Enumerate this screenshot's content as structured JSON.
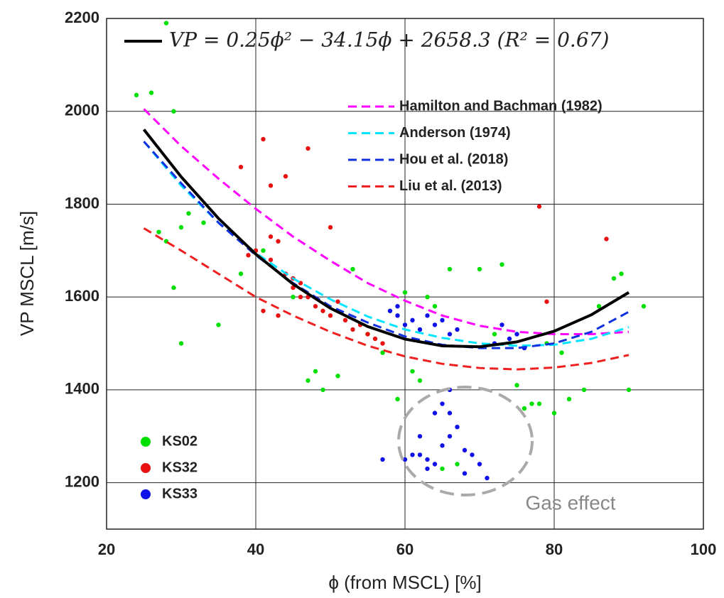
{
  "chart_data": {
    "type": "scatter",
    "xlabel": "ϕ (from MSCL) [%]",
    "ylabel": "VP MSCL [m/s]",
    "annotation": "Gas effect",
    "xlim": [
      20,
      100
    ],
    "ylim": [
      1100,
      2200
    ],
    "xticks": [
      20,
      40,
      60,
      80,
      100
    ],
    "yticks": [
      1200,
      1400,
      1600,
      1800,
      2000,
      2200
    ],
    "grid": true,
    "series": [
      {
        "name": "KS02",
        "color": "#00e000",
        "mode": "markers",
        "x": [
          24,
          26,
          28,
          29,
          27,
          28,
          30,
          31,
          33,
          35,
          30,
          29,
          38,
          41,
          45,
          48,
          49,
          51,
          53,
          47,
          55,
          57,
          60,
          61,
          62,
          63,
          64,
          66,
          70,
          72,
          73,
          75,
          76,
          78,
          80,
          82,
          84,
          86,
          88,
          89,
          90,
          92,
          74,
          77,
          79,
          81,
          65,
          67,
          59,
          58
        ],
        "y": [
          2035,
          2040,
          2190,
          2000,
          1740,
          1720,
          1750,
          1780,
          1760,
          1540,
          1500,
          1620,
          1650,
          1700,
          1600,
          1440,
          1400,
          1430,
          1660,
          1420,
          1520,
          1480,
          1610,
          1440,
          1420,
          1600,
          1580,
          1660,
          1660,
          1520,
          1670,
          1410,
          1360,
          1370,
          1350,
          1380,
          1400,
          1580,
          1640,
          1650,
          1400,
          1580,
          1500,
          1370,
          1500,
          1480,
          1230,
          1240,
          1380,
          1570
        ]
      },
      {
        "name": "KS32",
        "color": "#e81010",
        "mode": "markers",
        "x": [
          38,
          39,
          41,
          42,
          43,
          44,
          46,
          47,
          50,
          40,
          42,
          44,
          45,
          46,
          48,
          49,
          50,
          52,
          54,
          55,
          56,
          41,
          43,
          47,
          51,
          53,
          57,
          78,
          87,
          79,
          42,
          45
        ],
        "y": [
          1880,
          1690,
          1940,
          1840,
          1720,
          1860,
          1630,
          1920,
          1750,
          1700,
          1680,
          1650,
          1620,
          1600,
          1580,
          1570,
          1560,
          1550,
          1540,
          1520,
          1510,
          1570,
          1560,
          1600,
          1590,
          1530,
          1500,
          1795,
          1725,
          1590,
          1730,
          1640
        ]
      },
      {
        "name": "KS33",
        "color": "#1010e8",
        "mode": "markers",
        "x": [
          58,
          59,
          60,
          61,
          62,
          63,
          64,
          65,
          66,
          67,
          62,
          63,
          64,
          65,
          66,
          67,
          68,
          69,
          70,
          60,
          61,
          63,
          65,
          66,
          72,
          74,
          75,
          76,
          71,
          57,
          59,
          62,
          64,
          66,
          68,
          73
        ],
        "y": [
          1570,
          1560,
          1540,
          1550,
          1530,
          1560,
          1540,
          1550,
          1520,
          1530,
          1260,
          1250,
          1240,
          1280,
          1300,
          1320,
          1270,
          1260,
          1240,
          1250,
          1260,
          1230,
          1370,
          1350,
          1500,
          1510,
          1520,
          1490,
          1210,
          1250,
          1580,
          1300,
          1350,
          1400,
          1220,
          1540
        ]
      },
      {
        "name": "Hamilton and Bachman (1982)",
        "color": "#ff00ff",
        "mode": "dash",
        "x": [
          25,
          30,
          35,
          40,
          45,
          50,
          55,
          60,
          65,
          70,
          75,
          80,
          85,
          90
        ],
        "y": [
          2005,
          1925,
          1855,
          1790,
          1730,
          1678,
          1630,
          1592,
          1560,
          1538,
          1525,
          1520,
          1520,
          1525
        ]
      },
      {
        "name": "Anderson (1974)",
        "color": "#00e5ff",
        "mode": "dash",
        "x": [
          25,
          30,
          35,
          40,
          45,
          50,
          55,
          60,
          65,
          70,
          75,
          80,
          85,
          90
        ],
        "y": [
          1935,
          1840,
          1760,
          1695,
          1640,
          1595,
          1558,
          1530,
          1512,
          1500,
          1495,
          1497,
          1510,
          1535
        ]
      },
      {
        "name": "Hou et al. (2018)",
        "color": "#1030e0",
        "mode": "dash",
        "x": [
          25,
          30,
          35,
          40,
          45,
          50,
          55,
          60,
          65,
          70,
          75,
          80,
          85,
          90
        ],
        "y": [
          1935,
          1845,
          1760,
          1690,
          1630,
          1580,
          1545,
          1515,
          1497,
          1490,
          1490,
          1500,
          1525,
          1568
        ]
      },
      {
        "name": "Liu et al. (2013)",
        "color": "#f02020",
        "mode": "dash",
        "x": [
          25,
          30,
          35,
          40,
          45,
          50,
          55,
          60,
          65,
          70,
          75,
          80,
          85,
          90
        ],
        "y": [
          1748,
          1700,
          1650,
          1600,
          1560,
          1525,
          1495,
          1472,
          1456,
          1447,
          1444,
          1448,
          1458,
          1475
        ]
      },
      {
        "name": "VP = 0.25ϕ² − 34.15ϕ + 2658.3 (R² = 0.67)",
        "color": "#000000",
        "mode": "solid",
        "x": [
          25,
          30,
          35,
          40,
          45,
          50,
          55,
          60,
          65,
          70,
          75,
          80,
          85,
          90
        ],
        "y": [
          1960.8,
          1858.8,
          1769.3,
          1692.3,
          1627.8,
          1575.8,
          1536.3,
          1509.3,
          1494.8,
          1492.8,
          1503.3,
          1526.3,
          1561.8,
          1609.8
        ]
      }
    ]
  }
}
